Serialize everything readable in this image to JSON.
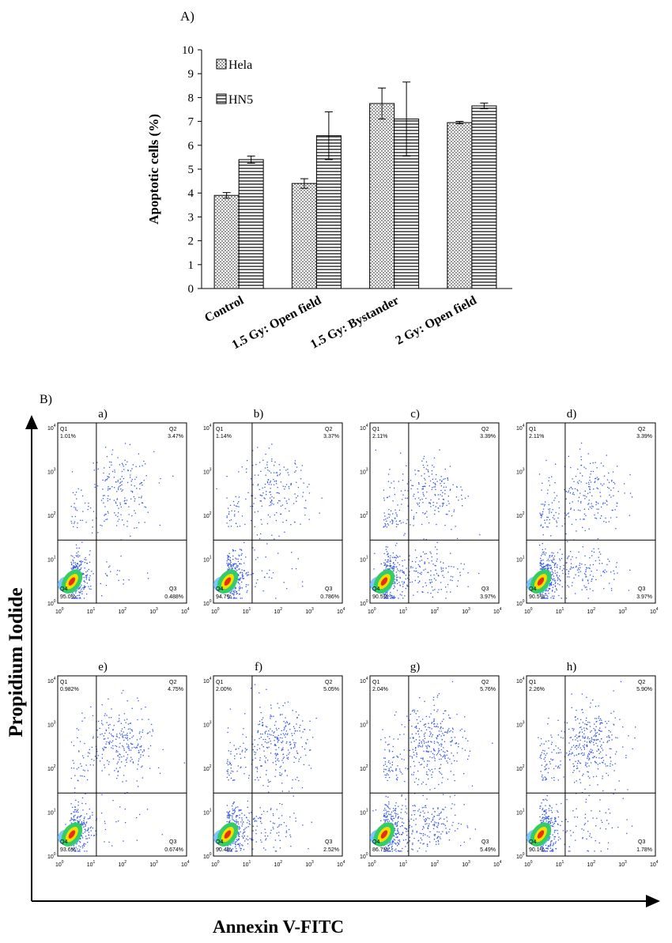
{
  "panel_a_label": "A)",
  "panel_b_label": "B)",
  "subplot_labels": [
    "a)",
    "b)",
    "c)",
    "d)",
    "e)",
    "f)",
    "g)",
    "h)"
  ],
  "bar_chart": {
    "type": "bar",
    "categories": [
      "Control",
      "1.5 Gy: Open field",
      "1.5 Gy: Bystander",
      "2 Gy: Open field"
    ],
    "series": [
      {
        "name": "Hela",
        "values": [
          3.9,
          4.4,
          7.75,
          6.95
        ],
        "errors": [
          0.12,
          0.2,
          0.65,
          0.05
        ]
      },
      {
        "name": "HN5",
        "values": [
          5.4,
          6.4,
          7.1,
          7.65
        ],
        "errors": [
          0.15,
          1.0,
          1.55,
          0.12
        ]
      }
    ],
    "ylabel": "Apoptotic cells (%)",
    "ylim": [
      0,
      10
    ],
    "yticks": [
      0,
      1,
      2,
      3,
      4,
      5,
      6,
      7,
      8,
      9,
      10
    ],
    "grid": false,
    "legend_position": "top-left"
  },
  "chart_data": [
    {
      "type": "bar",
      "categories": [
        "Control",
        "1.5 Gy: Open field",
        "1.5 Gy: Bystander",
        "2 Gy: Open field"
      ],
      "series": [
        {
          "name": "Hela",
          "values": [
            3.9,
            4.4,
            7.75,
            6.95
          ],
          "errors": [
            0.12,
            0.2,
            0.65,
            0.05
          ]
        },
        {
          "name": "HN5",
          "values": [
            5.4,
            6.4,
            7.1,
            7.65
          ],
          "errors": [
            0.15,
            1.0,
            1.55,
            0.12
          ]
        }
      ],
      "ylabel": "Apoptotic cells (%)",
      "ylim": [
        0,
        10
      ],
      "grid": false,
      "legend_position": "top-left"
    },
    {
      "type": "scatter",
      "title": "",
      "xlabel": "Annexin V-FITC",
      "ylabel": "Propidium Iodide",
      "x_scale": "log",
      "y_scale": "log",
      "xlim": [
        1,
        10000
      ],
      "ylim": [
        1,
        10000
      ],
      "panels": [
        {
          "label": "a)",
          "q1": "1.01%",
          "q2": "3.47%",
          "q3": "0.488%",
          "q4": "95.0%"
        },
        {
          "label": "b)",
          "q1": "1.14%",
          "q2": "3.37%",
          "q3": "0.786%",
          "q4": "94.7%"
        },
        {
          "label": "c)",
          "q1": "2.11%",
          "q2": "3.39%",
          "q3": "3.97%",
          "q4": "90.5%"
        },
        {
          "label": "d)",
          "q1": "2.11%",
          "q2": "3.39%",
          "q3": "3.97%",
          "q4": "90.5%"
        },
        {
          "label": "e)",
          "q1": "0.982%",
          "q2": "4.75%",
          "q3": "0.674%",
          "q4": "93.6%"
        },
        {
          "label": "f)",
          "q1": "2.00%",
          "q2": "5.05%",
          "q3": "2.52%",
          "q4": "90.4%"
        },
        {
          "label": "g)",
          "q1": "2.04%",
          "q2": "5.76%",
          "q3": "5.49%",
          "q4": "86.7%"
        },
        {
          "label": "h)",
          "q1": "2.26%",
          "q2": "5.90%",
          "q3": "1.78%",
          "q4": "90.1%"
        }
      ]
    }
  ],
  "flow": {
    "xlabel": "Annexin V-FITC",
    "ylabel": "Propidium Iodide",
    "quadrant_names": [
      "Q1",
      "Q2",
      "Q3",
      "Q4"
    ],
    "tick_bases": [
      "10",
      "10",
      "10",
      "10",
      "10"
    ],
    "tick_exps": [
      "0",
      "1",
      "2",
      "3",
      "4"
    ],
    "panels": [
      {
        "label": "a)",
        "q1": "1.01%",
        "q2": "3.47%",
        "q3": "0.488%",
        "q4": "95.0%"
      },
      {
        "label": "b)",
        "q1": "1.14%",
        "q2": "3.37%",
        "q3": "0.786%",
        "q4": "94.7%"
      },
      {
        "label": "c)",
        "q1": "2.11%",
        "q2": "3.39%",
        "q3": "3.97%",
        "q4": "90.5%"
      },
      {
        "label": "d)",
        "q1": "2.11%",
        "q2": "3.39%",
        "q3": "3.97%",
        "q4": "90.5%"
      },
      {
        "label": "e)",
        "q1": "0.982%",
        "q2": "4.75%",
        "q3": "0.674%",
        "q4": "93.6%"
      },
      {
        "label": "f)",
        "q1": "2.00%",
        "q2": "5.05%",
        "q3": "2.52%",
        "q4": "90.4%"
      },
      {
        "label": "g)",
        "q1": "2.04%",
        "q2": "5.76%",
        "q3": "5.49%",
        "q4": "86.7%"
      },
      {
        "label": "h)",
        "q1": "2.26%",
        "q2": "5.90%",
        "q3": "1.78%",
        "q4": "90.1%"
      }
    ]
  },
  "colors": {
    "dot": "#3355ee",
    "dot_dense": "#1a2fd0",
    "core_outer": "#33cc66",
    "core_mid": "#f0e000",
    "core_inner": "#e83010",
    "core_base": "#5fb8ff"
  }
}
